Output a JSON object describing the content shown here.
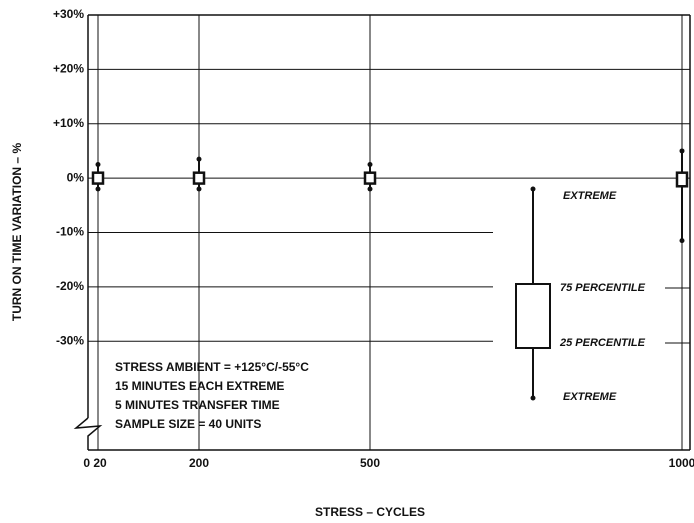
{
  "chart_data": {
    "type": "box",
    "x_label": "STRESS – CYCLES",
    "y_label": "TURN ON TIME VARIATION – %",
    "categories": [
      "0 20",
      "200",
      "500",
      "1000"
    ],
    "boxes": [
      {
        "low": -2,
        "q1": -1,
        "q3": 1,
        "high": 2.5
      },
      {
        "low": -2,
        "q1": -1,
        "q3": 1,
        "high": 3.5
      },
      {
        "low": -2,
        "q1": -1,
        "q3": 1,
        "high": 2.5
      },
      {
        "low": -11.5,
        "q1": -1.5,
        "q3": 1,
        "high": 5
      }
    ],
    "color": "#111111",
    "ylim": [
      -50,
      30
    ],
    "yticks": [
      {
        "value": 30,
        "label": "+30%"
      },
      {
        "value": 20,
        "label": "+20%"
      },
      {
        "value": 10,
        "label": "+10%"
      },
      {
        "value": 0,
        "label": "0%"
      },
      {
        "value": -10,
        "label": "-10%"
      },
      {
        "value": -20,
        "label": "-20%"
      },
      {
        "value": -30,
        "label": "-30%"
      }
    ],
    "grid": true,
    "legend": [
      "EXTREME",
      "75 PERCENTILE",
      "25 PERCENTILE",
      "EXTREME"
    ],
    "annotation": [
      "STRESS AMBIENT = +125°C/-55°C",
      "15 MINUTES EACH EXTREME",
      "5 MINUTES TRANSFER TIME",
      "SAMPLE SIZE = 40 UNITS"
    ]
  }
}
